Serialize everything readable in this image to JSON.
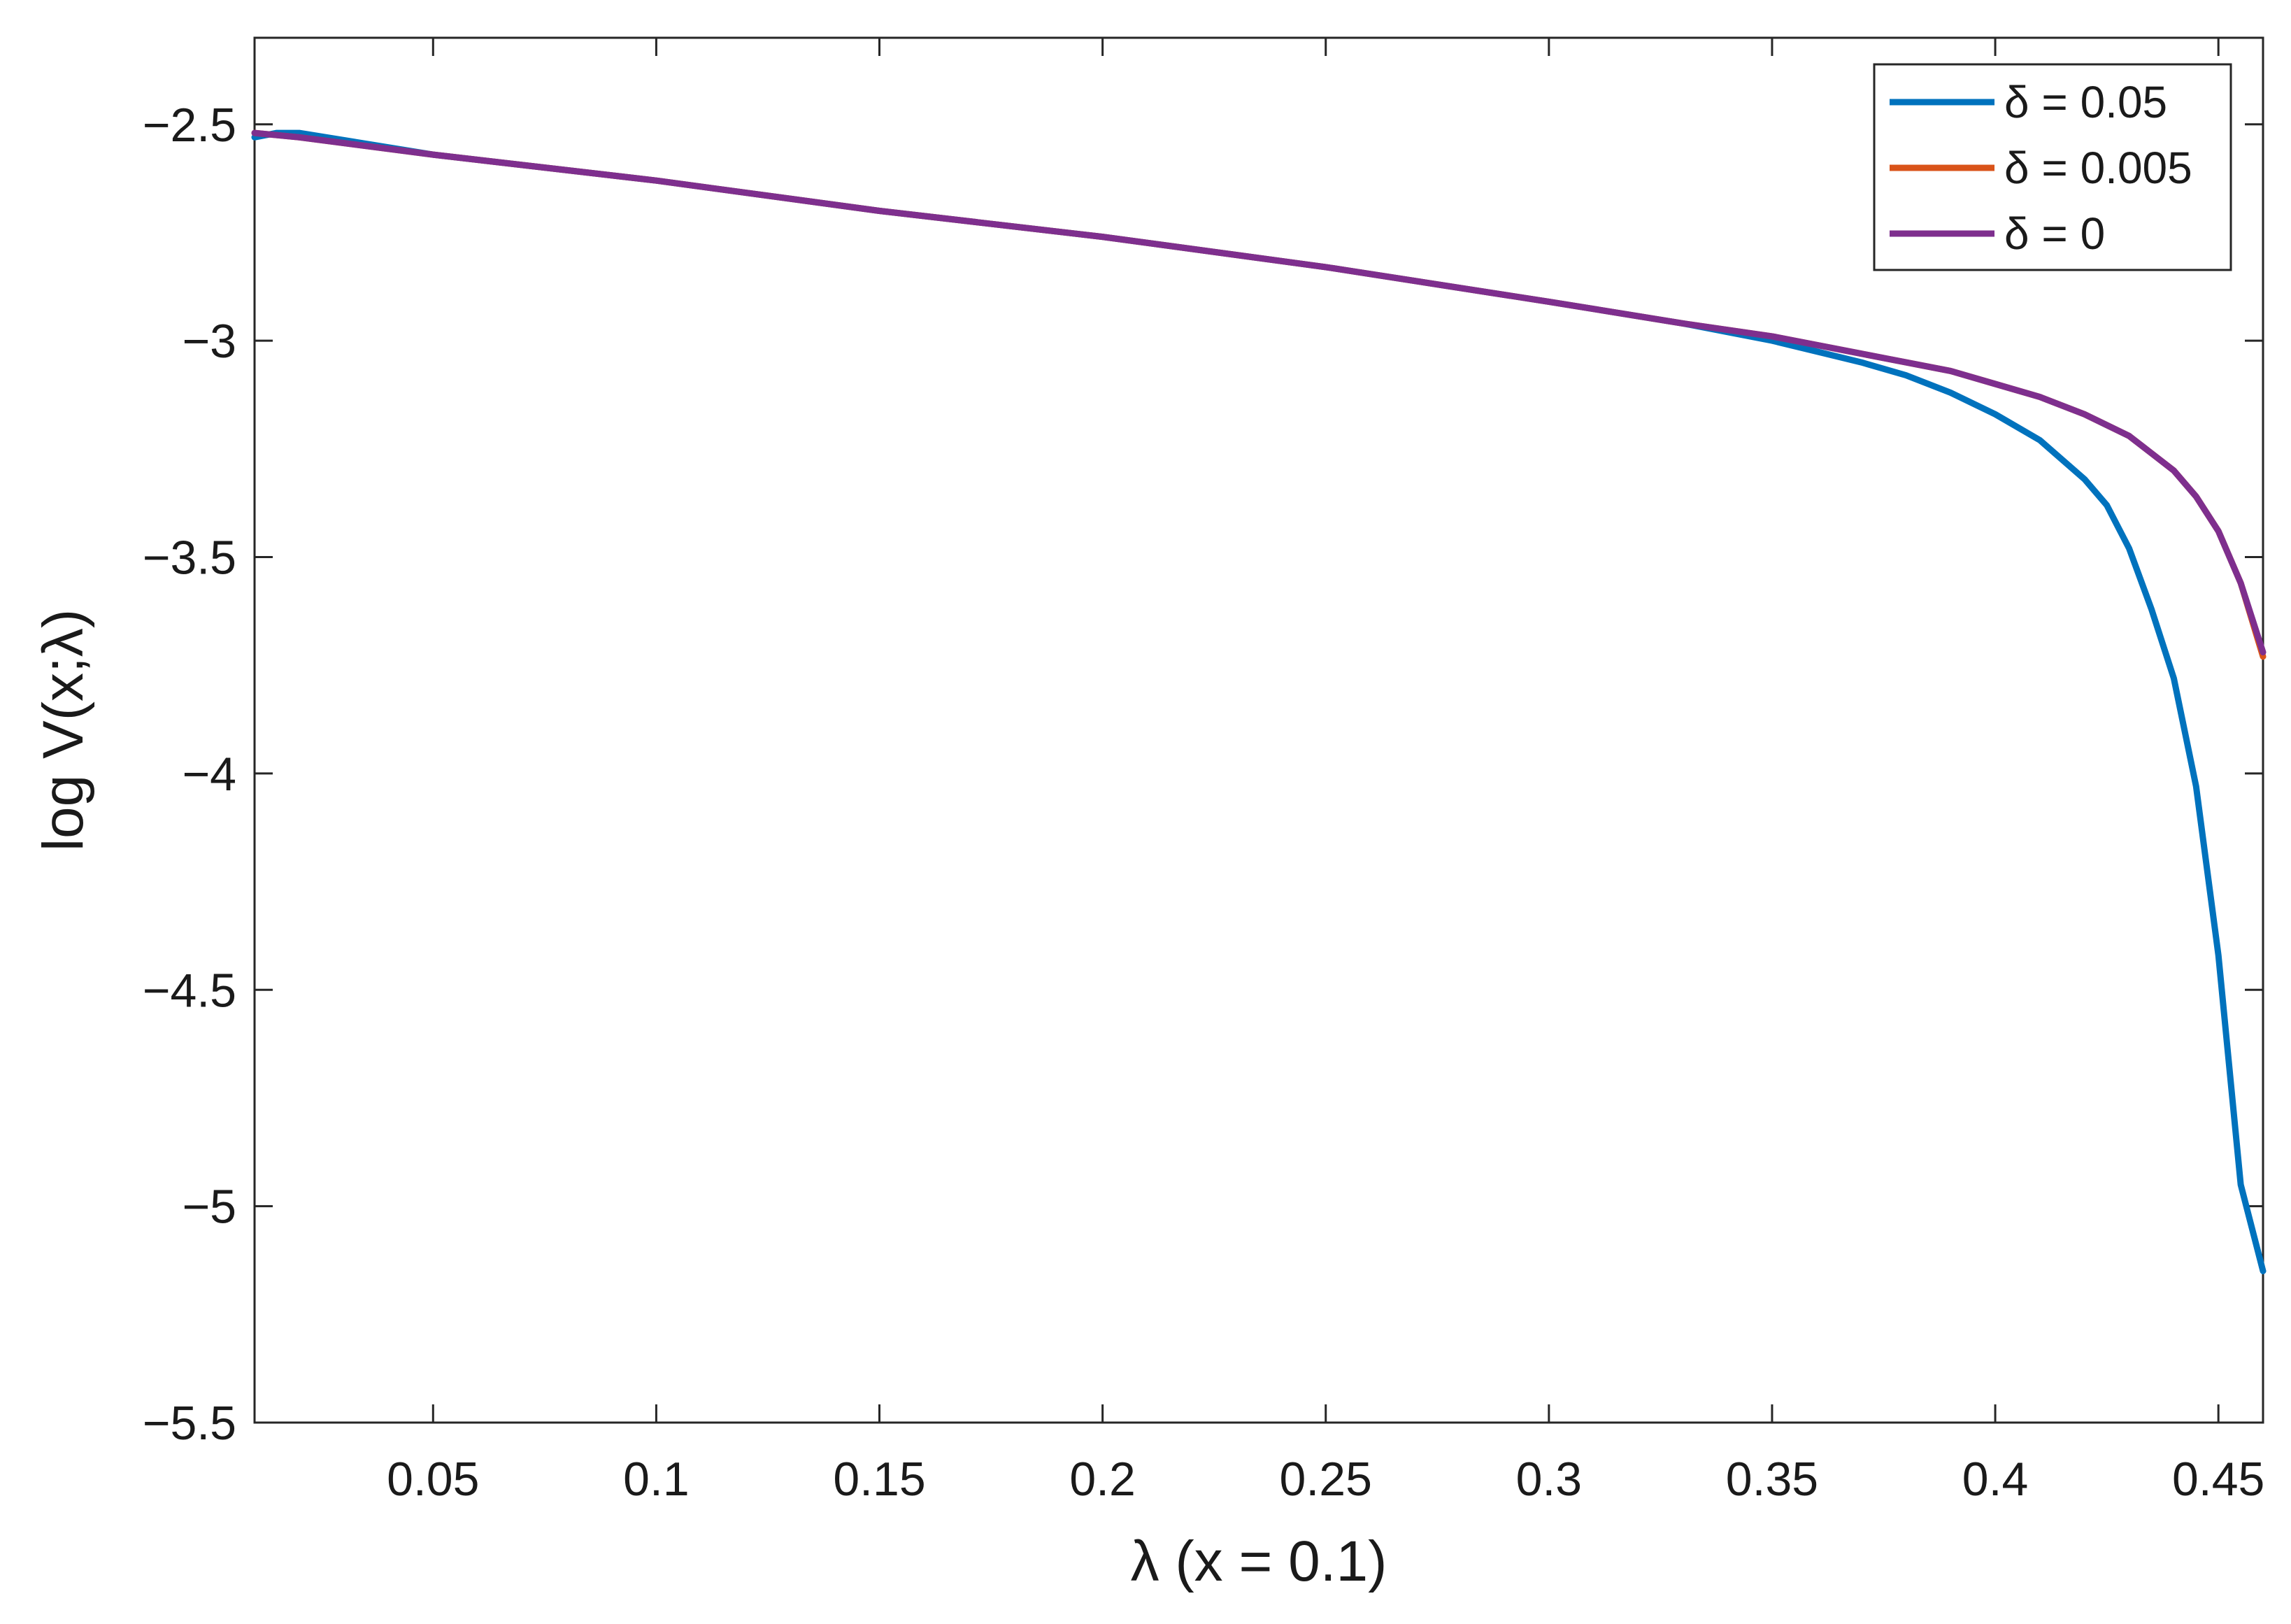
{
  "chart_data": {
    "type": "line",
    "xlabel": "λ (x = 0.1)",
    "ylabel": "log V(x;λ)",
    "xlim": [
      0.01,
      0.46
    ],
    "ylim": [
      -5.5,
      -2.3
    ],
    "xticks": [
      0.05,
      0.1,
      0.15,
      0.2,
      0.25,
      0.3,
      0.35,
      0.4,
      0.45
    ],
    "xtick_labels": [
      "0.05",
      "0.1",
      "0.15",
      "0.2",
      "0.25",
      "0.3",
      "0.35",
      "0.4",
      "0.45"
    ],
    "yticks": [
      -5.5,
      -5,
      -4.5,
      -4,
      -3.5,
      -3,
      -2.5
    ],
    "ytick_labels": [
      "−5.5",
      "−5",
      "−4.5",
      "−4",
      "−3.5",
      "−3",
      "−2.5"
    ],
    "grid": false,
    "legend_position": "top-right",
    "series": [
      {
        "name": "δ = 0.05",
        "color": "#0072BD",
        "x": [
          0.01,
          0.015,
          0.02,
          0.05,
          0.1,
          0.15,
          0.2,
          0.25,
          0.3,
          0.33,
          0.35,
          0.37,
          0.38,
          0.39,
          0.4,
          0.41,
          0.42,
          0.425,
          0.43,
          0.435,
          0.44,
          0.445,
          0.45,
          0.455,
          0.46
        ],
        "y": [
          -2.53,
          -2.52,
          -2.52,
          -2.57,
          -2.63,
          -2.7,
          -2.76,
          -2.83,
          -2.91,
          -2.96,
          -3.0,
          -3.05,
          -3.08,
          -3.12,
          -3.17,
          -3.23,
          -3.32,
          -3.38,
          -3.48,
          -3.62,
          -3.78,
          -4.03,
          -4.42,
          -4.95,
          -5.15
        ]
      },
      {
        "name": "δ = 0.005",
        "color": "#D95319",
        "x": [
          0.01,
          0.02,
          0.05,
          0.1,
          0.15,
          0.2,
          0.25,
          0.3,
          0.33,
          0.35,
          0.37,
          0.38,
          0.39,
          0.4,
          0.41,
          0.42,
          0.43,
          0.435,
          0.44,
          0.445,
          0.45,
          0.455,
          0.46
        ],
        "y": [
          -2.52,
          -2.53,
          -2.57,
          -2.63,
          -2.7,
          -2.76,
          -2.83,
          -2.91,
          -2.96,
          -2.99,
          -3.03,
          -3.05,
          -3.07,
          -3.1,
          -3.13,
          -3.17,
          -3.22,
          -3.26,
          -3.3,
          -3.36,
          -3.44,
          -3.56,
          -3.73
        ]
      },
      {
        "name": "δ = 0",
        "color": "#7E2F8E",
        "x": [
          0.01,
          0.02,
          0.05,
          0.1,
          0.15,
          0.2,
          0.25,
          0.3,
          0.33,
          0.35,
          0.37,
          0.38,
          0.39,
          0.4,
          0.41,
          0.42,
          0.43,
          0.435,
          0.44,
          0.445,
          0.45,
          0.455,
          0.46
        ],
        "y": [
          -2.52,
          -2.53,
          -2.57,
          -2.63,
          -2.7,
          -2.76,
          -2.83,
          -2.91,
          -2.96,
          -2.99,
          -3.03,
          -3.05,
          -3.07,
          -3.1,
          -3.13,
          -3.17,
          -3.22,
          -3.26,
          -3.3,
          -3.36,
          -3.44,
          -3.56,
          -3.72
        ]
      }
    ]
  }
}
